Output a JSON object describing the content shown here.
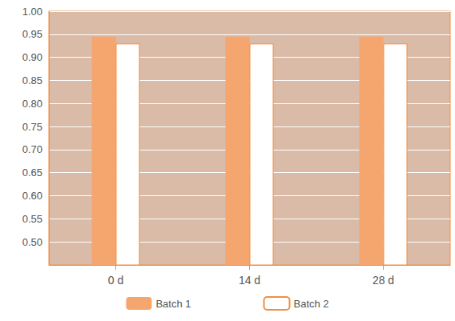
{
  "chart_data": {
    "type": "bar",
    "categories": [
      "0 d",
      "14 d",
      "28 d"
    ],
    "series": [
      {
        "name": "Batch 1",
        "color": "#f5a56e",
        "values": [
          0.945,
          0.945,
          0.945
        ]
      },
      {
        "name": "Batch 2",
        "color": "#ffffff",
        "values": [
          0.93,
          0.93,
          0.93
        ]
      }
    ],
    "ylim": [
      0.45,
      1.0
    ],
    "yticks": [
      {
        "value": 0.5,
        "label": "0.50"
      },
      0.55,
      {
        "value": 0.6,
        "label": "0.60"
      },
      0.65,
      {
        "value": 0.7,
        "label": "0.70"
      },
      0.75,
      {
        "value": 0.8,
        "label": "0.80"
      },
      0.85,
      {
        "value": 0.9,
        "label": "0.90"
      },
      0.95,
      {
        "value": 1.0,
        "label": "1.00"
      }
    ],
    "grid": true,
    "legend": "bottom"
  }
}
